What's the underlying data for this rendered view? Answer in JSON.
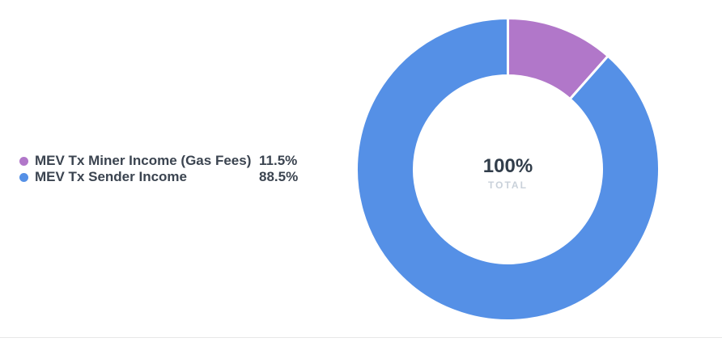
{
  "chart_data": {
    "type": "pie",
    "donut": true,
    "start_angle_deg": 0,
    "categories": [
      "MEV Tx Miner Income (Gas Fees)",
      "MEV Tx Sender Income"
    ],
    "values": [
      11.5,
      88.5
    ],
    "colors": [
      "#b177c9",
      "#5590e6"
    ],
    "center_label": "100%",
    "center_sublabel": "TOTAL",
    "legend_position": "left",
    "title": ""
  },
  "legend": {
    "items": [
      {
        "label": "MEV Tx Miner Income (Gas Fees)",
        "value": "11.5%",
        "color": "#b177c9"
      },
      {
        "label": "MEV Tx Sender Income",
        "value": "88.5%",
        "color": "#5590e6"
      }
    ]
  }
}
